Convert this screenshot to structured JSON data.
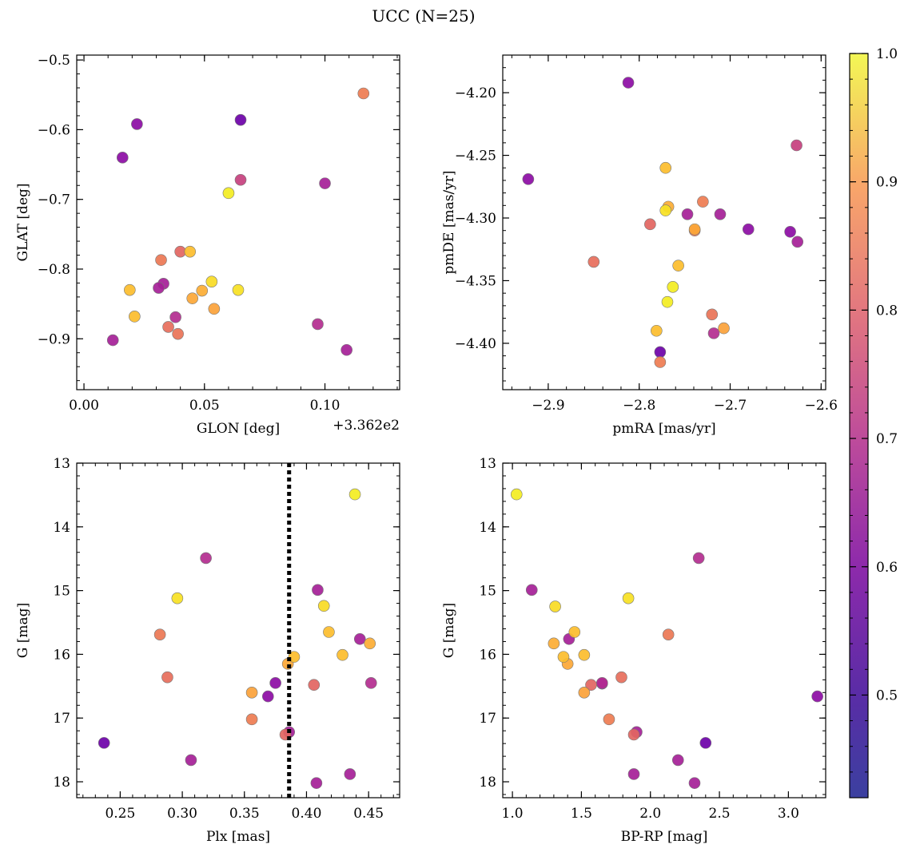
{
  "figure": {
    "title": "UCC (N=25)"
  },
  "colorbar": {
    "colormap": "plasma",
    "range": [
      0.42,
      1.0
    ],
    "ticks": [
      0.5,
      0.6,
      0.7,
      0.8,
      0.9,
      1.0
    ],
    "tick_labels": [
      "0.5",
      "0.6",
      "0.7",
      "0.8",
      "0.9",
      "1.0"
    ]
  },
  "chart_data": [
    {
      "type": "scatter",
      "panel": "top-left",
      "xlabel": "GLON [deg]",
      "ylabel": "GLAT [deg]",
      "x_offset_label": "+3.362e2",
      "xlim": [
        -0.003,
        0.131
      ],
      "ylim": [
        -0.973,
        -0.493
      ],
      "x_ticks": [
        0.0,
        0.05,
        0.1
      ],
      "x_tick_labels": [
        "0.00",
        "0.05",
        "0.10"
      ],
      "y_ticks": [
        -0.5,
        -0.6,
        -0.7,
        -0.8,
        -0.9
      ],
      "y_tick_labels": [
        "−0.5",
        "−0.6",
        "−0.7",
        "−0.8",
        "−0.9"
      ],
      "points": [
        {
          "x": 0.116,
          "y": -0.548,
          "c": 0.77
        },
        {
          "x": 0.022,
          "y": -0.592,
          "c": 0.5
        },
        {
          "x": 0.065,
          "y": -0.586,
          "c": 0.44
        },
        {
          "x": 0.016,
          "y": -0.64,
          "c": 0.5
        },
        {
          "x": 0.065,
          "y": -0.672,
          "c": 0.63
        },
        {
          "x": 0.1,
          "y": -0.677,
          "c": 0.55
        },
        {
          "x": 0.06,
          "y": -0.691,
          "c": 0.98
        },
        {
          "x": 0.044,
          "y": -0.775,
          "c": 0.9
        },
        {
          "x": 0.04,
          "y": -0.775,
          "c": 0.72
        },
        {
          "x": 0.032,
          "y": -0.787,
          "c": 0.76
        },
        {
          "x": 0.033,
          "y": -0.821,
          "c": 0.55
        },
        {
          "x": 0.031,
          "y": -0.827,
          "c": 0.55
        },
        {
          "x": 0.019,
          "y": -0.83,
          "c": 0.9
        },
        {
          "x": 0.049,
          "y": -0.831,
          "c": 0.87
        },
        {
          "x": 0.053,
          "y": -0.818,
          "c": 0.95
        },
        {
          "x": 0.064,
          "y": -0.83,
          "c": 0.96
        },
        {
          "x": 0.045,
          "y": -0.842,
          "c": 0.86
        },
        {
          "x": 0.054,
          "y": -0.857,
          "c": 0.85
        },
        {
          "x": 0.021,
          "y": -0.868,
          "c": 0.9
        },
        {
          "x": 0.038,
          "y": -0.869,
          "c": 0.58
        },
        {
          "x": 0.035,
          "y": -0.883,
          "c": 0.74
        },
        {
          "x": 0.039,
          "y": -0.893,
          "c": 0.75
        },
        {
          "x": 0.097,
          "y": -0.879,
          "c": 0.58
        },
        {
          "x": 0.012,
          "y": -0.902,
          "c": 0.55
        },
        {
          "x": 0.109,
          "y": -0.916,
          "c": 0.55
        }
      ]
    },
    {
      "type": "scatter",
      "panel": "top-right",
      "xlabel": "pmRA [mas/yr]",
      "ylabel": "pmDE [mas/yr]",
      "xlim": [
        -2.95,
        -2.595
      ],
      "ylim": [
        -4.437,
        -4.17
      ],
      "x_ticks": [
        -2.9,
        -2.8,
        -2.7,
        -2.6
      ],
      "x_tick_labels": [
        "−2.9",
        "−2.8",
        "−2.7",
        "−2.6"
      ],
      "y_ticks": [
        -4.2,
        -4.25,
        -4.3,
        -4.35,
        -4.4
      ],
      "y_tick_labels": [
        "−4.20",
        "−4.25",
        "−4.30",
        "−4.35",
        "−4.40"
      ],
      "points": [
        {
          "x": -2.812,
          "y": -4.192,
          "c": 0.5
        },
        {
          "x": -2.922,
          "y": -4.269,
          "c": 0.5
        },
        {
          "x": -2.627,
          "y": -4.242,
          "c": 0.63
        },
        {
          "x": -2.771,
          "y": -4.26,
          "c": 0.9
        },
        {
          "x": -2.768,
          "y": -4.291,
          "c": 0.87
        },
        {
          "x": -2.771,
          "y": -4.294,
          "c": 0.96
        },
        {
          "x": -2.73,
          "y": -4.287,
          "c": 0.77
        },
        {
          "x": -2.747,
          "y": -4.297,
          "c": 0.55
        },
        {
          "x": -2.711,
          "y": -4.297,
          "c": 0.55
        },
        {
          "x": -2.788,
          "y": -4.305,
          "c": 0.72
        },
        {
          "x": -2.739,
          "y": -4.309,
          "c": 0.86
        },
        {
          "x": -2.739,
          "y": -4.31,
          "c": 0.76
        },
        {
          "x": -2.68,
          "y": -4.309,
          "c": 0.5
        },
        {
          "x": -2.634,
          "y": -4.311,
          "c": 0.5
        },
        {
          "x": -2.626,
          "y": -4.319,
          "c": 0.55
        },
        {
          "x": -2.85,
          "y": -4.335,
          "c": 0.74
        },
        {
          "x": -2.757,
          "y": -4.338,
          "c": 0.9
        },
        {
          "x": -2.763,
          "y": -4.355,
          "c": 0.98
        },
        {
          "x": -2.769,
          "y": -4.367,
          "c": 0.98
        },
        {
          "x": -2.72,
          "y": -4.377,
          "c": 0.75
        },
        {
          "x": -2.707,
          "y": -4.388,
          "c": 0.85
        },
        {
          "x": -2.781,
          "y": -4.39,
          "c": 0.9
        },
        {
          "x": -2.718,
          "y": -4.392,
          "c": 0.58
        },
        {
          "x": -2.777,
          "y": -4.407,
          "c": 0.44
        },
        {
          "x": -2.777,
          "y": -4.415,
          "c": 0.77
        }
      ]
    },
    {
      "type": "scatter",
      "panel": "bottom-left",
      "xlabel": "Plx [mas]",
      "ylabel": "G [mag]",
      "xlim": [
        0.215,
        0.475
      ],
      "ylim": [
        18.25,
        13.0
      ],
      "x_ticks": [
        0.25,
        0.3,
        0.35,
        0.4,
        0.45
      ],
      "x_tick_labels": [
        "0.25",
        "0.30",
        "0.35",
        "0.40",
        "0.45"
      ],
      "y_ticks": [
        13,
        14,
        15,
        16,
        17,
        18
      ],
      "y_tick_labels": [
        "13",
        "14",
        "15",
        "16",
        "17",
        "18"
      ],
      "vline": {
        "x": 0.386,
        "style": "dotted",
        "color": "#000000"
      },
      "points": [
        {
          "x": 0.439,
          "y": 13.49,
          "c": 0.98
        },
        {
          "x": 0.319,
          "y": 14.49,
          "c": 0.58
        },
        {
          "x": 0.409,
          "y": 14.99,
          "c": 0.55
        },
        {
          "x": 0.296,
          "y": 15.12,
          "c": 0.96
        },
        {
          "x": 0.414,
          "y": 15.24,
          "c": 0.95
        },
        {
          "x": 0.282,
          "y": 15.69,
          "c": 0.76
        },
        {
          "x": 0.418,
          "y": 15.65,
          "c": 0.9
        },
        {
          "x": 0.443,
          "y": 15.76,
          "c": 0.55
        },
        {
          "x": 0.451,
          "y": 15.83,
          "c": 0.87
        },
        {
          "x": 0.429,
          "y": 16.01,
          "c": 0.9
        },
        {
          "x": 0.39,
          "y": 16.04,
          "c": 0.9
        },
        {
          "x": 0.385,
          "y": 16.15,
          "c": 0.86
        },
        {
          "x": 0.288,
          "y": 16.36,
          "c": 0.74
        },
        {
          "x": 0.375,
          "y": 16.45,
          "c": 0.5
        },
        {
          "x": 0.452,
          "y": 16.45,
          "c": 0.58
        },
        {
          "x": 0.406,
          "y": 16.48,
          "c": 0.72
        },
        {
          "x": 0.356,
          "y": 16.6,
          "c": 0.85
        },
        {
          "x": 0.369,
          "y": 16.66,
          "c": 0.5
        },
        {
          "x": 0.356,
          "y": 17.02,
          "c": 0.77
        },
        {
          "x": 0.383,
          "y": 17.26,
          "c": 0.72
        },
        {
          "x": 0.386,
          "y": 17.22,
          "c": 0.55
        },
        {
          "x": 0.237,
          "y": 17.39,
          "c": 0.44
        },
        {
          "x": 0.307,
          "y": 17.66,
          "c": 0.55
        },
        {
          "x": 0.435,
          "y": 17.88,
          "c": 0.55
        },
        {
          "x": 0.408,
          "y": 18.02,
          "c": 0.55
        }
      ]
    },
    {
      "type": "scatter",
      "panel": "bottom-right",
      "xlabel": "BP-RP [mag]",
      "ylabel": "G [mag]",
      "xlim": [
        0.93,
        3.27
      ],
      "ylim": [
        18.25,
        13.0
      ],
      "x_ticks": [
        1.0,
        1.5,
        2.0,
        2.5,
        3.0
      ],
      "x_tick_labels": [
        "1.0",
        "1.5",
        "2.0",
        "2.5",
        "3.0"
      ],
      "y_ticks": [
        13,
        14,
        15,
        16,
        17,
        18
      ],
      "y_tick_labels": [
        "13",
        "14",
        "15",
        "16",
        "17",
        "18"
      ],
      "points": [
        {
          "x": 1.03,
          "y": 13.49,
          "c": 0.98
        },
        {
          "x": 2.35,
          "y": 14.49,
          "c": 0.58
        },
        {
          "x": 1.14,
          "y": 14.99,
          "c": 0.55
        },
        {
          "x": 1.84,
          "y": 15.12,
          "c": 0.96
        },
        {
          "x": 1.31,
          "y": 15.25,
          "c": 0.95
        },
        {
          "x": 1.45,
          "y": 15.65,
          "c": 0.9
        },
        {
          "x": 2.13,
          "y": 15.69,
          "c": 0.76
        },
        {
          "x": 1.41,
          "y": 15.76,
          "c": 0.55
        },
        {
          "x": 1.3,
          "y": 15.83,
          "c": 0.87
        },
        {
          "x": 1.37,
          "y": 16.04,
          "c": 0.9
        },
        {
          "x": 1.52,
          "y": 16.01,
          "c": 0.9
        },
        {
          "x": 1.4,
          "y": 16.15,
          "c": 0.86
        },
        {
          "x": 1.79,
          "y": 16.36,
          "c": 0.74
        },
        {
          "x": 1.57,
          "y": 16.48,
          "c": 0.72
        },
        {
          "x": 1.65,
          "y": 16.46,
          "c": 0.5
        },
        {
          "x": 1.65,
          "y": 16.45,
          "c": 0.58
        },
        {
          "x": 1.52,
          "y": 16.6,
          "c": 0.85
        },
        {
          "x": 3.21,
          "y": 16.66,
          "c": 0.5
        },
        {
          "x": 1.7,
          "y": 17.02,
          "c": 0.77
        },
        {
          "x": 1.9,
          "y": 17.22,
          "c": 0.55
        },
        {
          "x": 1.88,
          "y": 17.26,
          "c": 0.72
        },
        {
          "x": 2.4,
          "y": 17.39,
          "c": 0.44
        },
        {
          "x": 2.2,
          "y": 17.66,
          "c": 0.55
        },
        {
          "x": 1.88,
          "y": 17.88,
          "c": 0.55
        },
        {
          "x": 2.32,
          "y": 18.02,
          "c": 0.55
        }
      ]
    }
  ]
}
